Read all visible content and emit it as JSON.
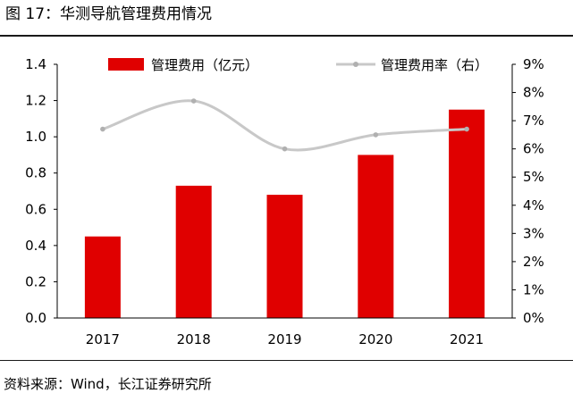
{
  "header": {
    "title": "图 17：华测导航管理费用情况"
  },
  "footer": {
    "source": "资料来源：Wind，长江证券研究所"
  },
  "chart_data": {
    "type": "bar",
    "categories": [
      "2017",
      "2018",
      "2019",
      "2020",
      "2021"
    ],
    "series": [
      {
        "name": "管理费用（亿元）",
        "type": "bar",
        "axis": "left",
        "color": "#e00000",
        "values": [
          0.45,
          0.73,
          0.68,
          0.9,
          1.15
        ]
      },
      {
        "name": "管理费用率（右）",
        "type": "line",
        "axis": "right",
        "color": "#c8c8c8",
        "values": [
          6.7,
          7.7,
          6.0,
          6.5,
          6.7
        ]
      }
    ],
    "y_left": {
      "ylim": [
        0,
        1.4
      ],
      "ticks": [
        "0.0",
        "0.2",
        "0.4",
        "0.6",
        "0.8",
        "1.0",
        "1.2",
        "1.4"
      ]
    },
    "y_right": {
      "ylim": [
        0,
        9
      ],
      "ticks": [
        "0%",
        "1%",
        "2%",
        "3%",
        "4%",
        "5%",
        "6%",
        "7%",
        "8%",
        "9%"
      ]
    },
    "legend": "top",
    "grid": false
  }
}
